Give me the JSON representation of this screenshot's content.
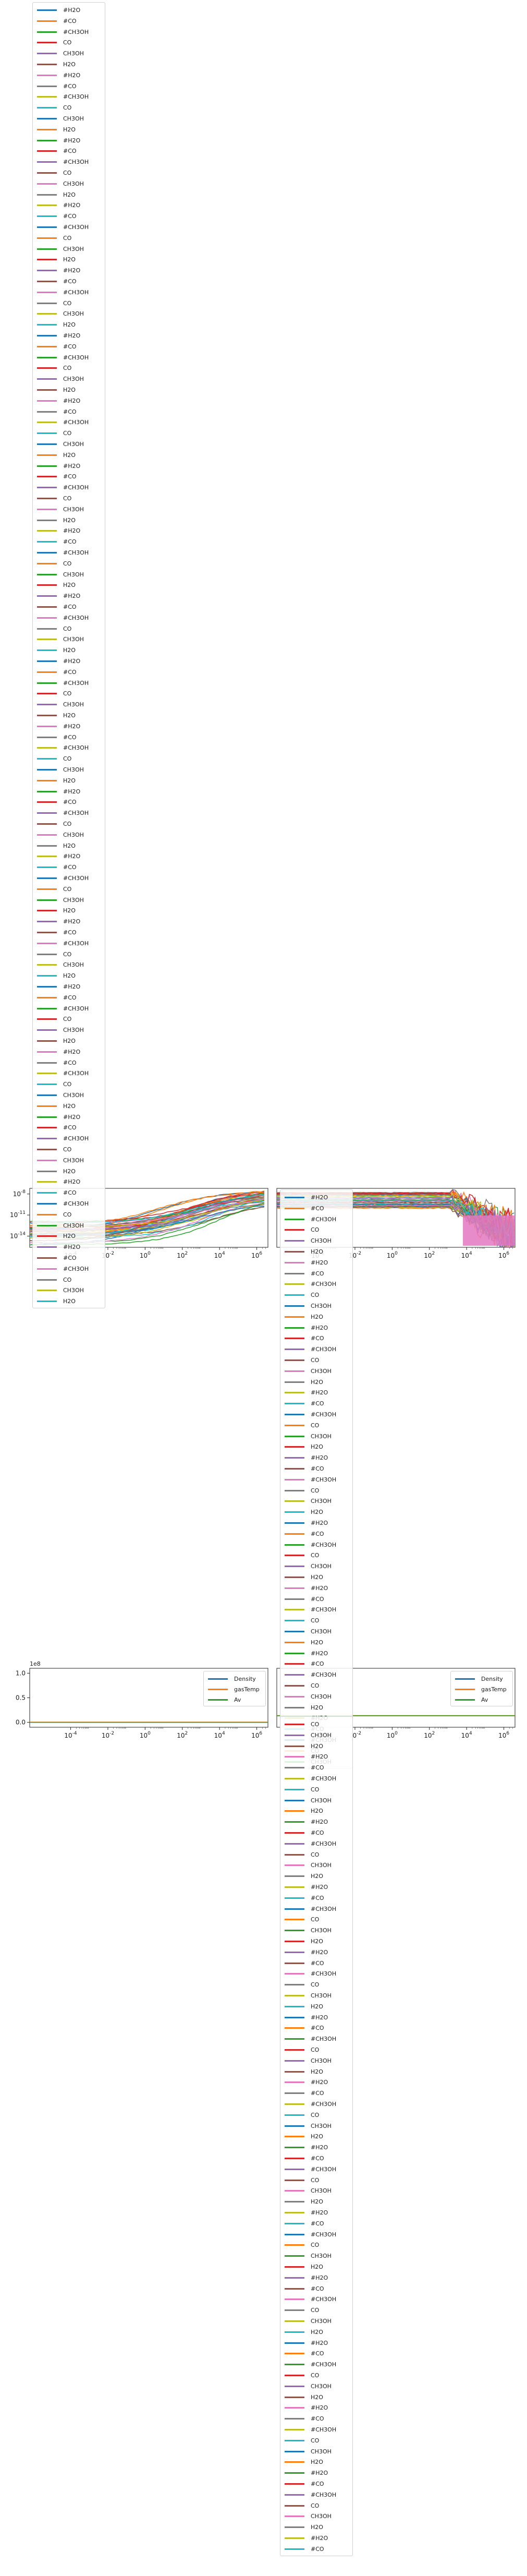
{
  "colors": {
    "tab_blue": "#1f77b4",
    "tab_orange": "#ff7f0e",
    "tab_green": "#2ca02c",
    "tab_red": "#d62728",
    "tab_purple": "#9467bd",
    "tab_brown": "#8c564b",
    "tab_pink": "#e377c2",
    "tab_gray": "#7f7f7f",
    "tab_olive": "#bcbd22",
    "tab_cyan": "#17becf"
  },
  "species_cycle": [
    "#H2O",
    "#CO",
    "#CH3OH",
    "CO",
    "CH3OH",
    "H2O"
  ],
  "color_cycle": [
    "#1f77b4",
    "#ff7f0e",
    "#2ca02c",
    "#d62728",
    "#9467bd",
    "#8c564b",
    "#e377c2",
    "#7f7f7f",
    "#bcbd22",
    "#17becf"
  ],
  "chart_data": [
    {
      "type": "line",
      "panel": "top-left",
      "x_scale": "log",
      "y_scale": "log",
      "x_ticks": [
        "10^-4",
        "10^-2",
        "10^0",
        "10^2",
        "10^4",
        "10^6"
      ],
      "y_ticks": [
        "10^-8",
        "10^-11",
        "10^-14"
      ],
      "legend_location": "upper left (extends above axes)",
      "legend_count": 120,
      "series_pattern": [
        "#H2O",
        "#CO",
        "#CH3OH",
        "CO",
        "CH3OH",
        "H2O"
      ],
      "approx_series_shape": "abundances rising from ~1e-15 at 1e-6 yr to ~1e-8 near 1e6 yr"
    },
    {
      "type": "line",
      "panel": "top-right",
      "x_scale": "log",
      "y_scale": "log",
      "x_ticks": [
        "10^-4",
        "10^-2",
        "10^0",
        "10^2",
        "10^4",
        "10^6"
      ],
      "legend_location": "upper left (extends below axes)",
      "legend_count": 120,
      "series_pattern": [
        "#H2O",
        "#CO",
        "#CH3OH",
        "CO",
        "CH3OH",
        "H2O"
      ]
    },
    {
      "type": "line",
      "panel": "bottom-left",
      "x_scale": "log",
      "y_scale": "linear",
      "x_ticks": [
        "10^-4",
        "10^-2",
        "10^0",
        "10^2",
        "10^4",
        "10^6"
      ],
      "y_ticks": [
        "0.0",
        "0.5",
        "1.0"
      ],
      "y_offset_text": "1e8",
      "series": [
        {
          "name": "Density"
        },
        {
          "name": "gasTemp"
        },
        {
          "name": "Av"
        }
      ],
      "legend_location": "upper right"
    },
    {
      "type": "line",
      "panel": "bottom-right",
      "x_scale": "log",
      "y_scale": "linear",
      "x_ticks": [
        "10^-4",
        "10^-2",
        "10^0",
        "10^2",
        "10^4",
        "10^6"
      ],
      "series": [
        {
          "name": "Density"
        },
        {
          "name": "gasTemp"
        },
        {
          "name": "Av"
        }
      ],
      "legend_location": "upper right"
    }
  ],
  "legends": {
    "top_left": {
      "count": 120
    },
    "top_right": {
      "count": 120
    },
    "bottom_left": {
      "items": [
        "Density",
        "gasTemp",
        "Av"
      ]
    },
    "bottom_right": {
      "items": [
        "Density",
        "gasTemp",
        "Av"
      ]
    }
  },
  "offset_text": "1e8"
}
